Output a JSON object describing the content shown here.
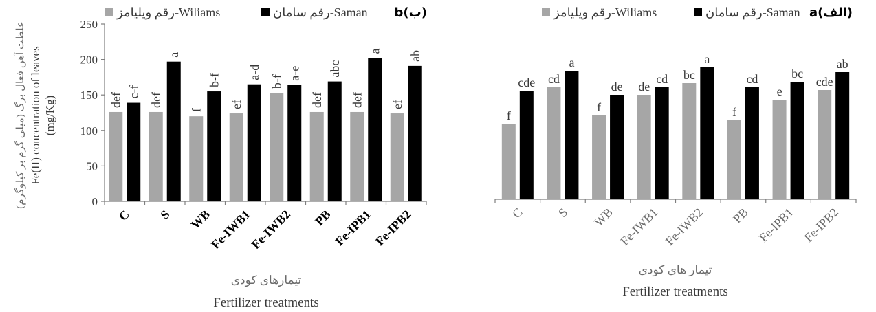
{
  "colors": {
    "williams": "#a6a6a6",
    "saman": "#000000",
    "axis": "#7f7f7f",
    "text": "#3a3a3a"
  },
  "chart_data": [
    {
      "type": "bar",
      "panel_label": "b(ب)",
      "categories": [
        "C",
        "S",
        "WB",
        "Fe-IWB1",
        "Fe-IWB2",
        "PB",
        "Fe-IPB1",
        "Fe-IPB2"
      ],
      "series": [
        {
          "name": "رقم ویلیامز-Wiliams",
          "values": [
            126,
            126,
            120,
            124,
            153,
            126,
            126,
            124
          ],
          "labels": [
            "def",
            "def",
            "f",
            "ef",
            "b-f",
            "def",
            "def",
            "ef"
          ]
        },
        {
          "name": "رقم سامان-Saman",
          "values": [
            139,
            197,
            155,
            165,
            164,
            169,
            202,
            191
          ],
          "labels": [
            "c-f",
            "a",
            "b-f",
            "a-d",
            "a-e",
            "abc",
            "a",
            "ab"
          ]
        }
      ],
      "ylim": [
        0,
        250
      ],
      "yticks": [
        0,
        50,
        100,
        150,
        200,
        250
      ],
      "ylabel_fa": "غلظت آهن فعال برگ (میلی گرم بر کیلوگرم)",
      "ylabel_en": "Fe(II) concentration of leaves",
      "ylabel_unit": "(mg/Kg)",
      "xlabel_fa": "تیمارهای کودی",
      "xlabel_en": "Fertilizer  treatments",
      "legend_position": "top"
    },
    {
      "type": "bar",
      "panel_label": "a(الف)",
      "categories": [
        "C",
        "S",
        "WB",
        "Fe-IWB1",
        "Fe-IWB2",
        "PB",
        "Fe-IPB1",
        "Fe-IPB2"
      ],
      "series": [
        {
          "name": "رقم ویلیامز-Wiliams",
          "values": [
            110,
            163,
            122,
            152,
            169,
            115,
            145,
            159
          ],
          "labels": [
            "f",
            "cd",
            "f",
            "de",
            "bc",
            "f",
            "e",
            "cde"
          ]
        },
        {
          "name": "رقم سامان-Saman",
          "values": [
            158,
            187,
            152,
            163,
            192,
            163,
            171,
            185
          ],
          "labels": [
            "cde",
            "a",
            "de",
            "cd",
            "a",
            "cd",
            "bc",
            "ab"
          ]
        }
      ],
      "ylim": [
        0,
        250
      ],
      "xlabel_fa": "تیمار های کودی",
      "xlabel_en": "Fertilizer  treatments",
      "legend_position": "top"
    }
  ]
}
